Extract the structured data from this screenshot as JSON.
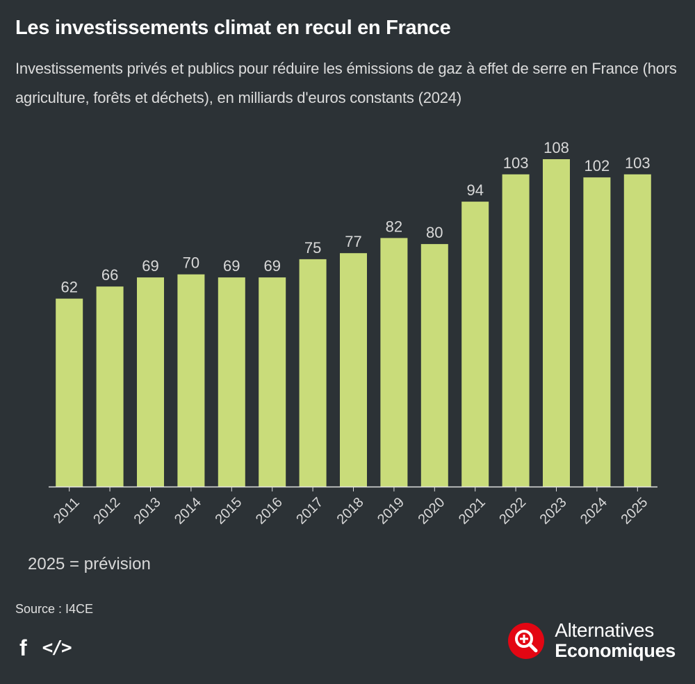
{
  "header": {
    "title": "Les investissements climat en recul en France",
    "subtitle": "Investissements privés et publics pour réduire les émissions de gaz à effet de serre en France (hors agriculture, forêts et déchets), en milliards d'euros constants (2024)"
  },
  "chart_data": {
    "type": "bar",
    "title": "Les investissements climat en recul en France",
    "subtitle": "Investissements privés et publics pour réduire les émissions de gaz à effet de serre en France (hors agriculture, forêts et déchets), en milliards d'euros constants (2024)",
    "categories": [
      "2011",
      "2012",
      "2013",
      "2014",
      "2015",
      "2016",
      "2017",
      "2018",
      "2019",
      "2020",
      "2021",
      "2022",
      "2023",
      "2024",
      "2025"
    ],
    "values": [
      62,
      66,
      69,
      70,
      69,
      69,
      75,
      77,
      82,
      80,
      94,
      103,
      108,
      102,
      103
    ],
    "labels": [
      "62",
      "66",
      "69",
      "70",
      "69",
      "69",
      "75",
      "77",
      "82",
      "80",
      "94",
      "103",
      "108",
      "102",
      "103"
    ],
    "xlabel": "",
    "ylabel": "",
    "ylim": [
      0,
      108
    ],
    "grid": false,
    "legend": "none",
    "bar_color": "#c9dc7a"
  },
  "colors": {
    "background": "#2c3236",
    "bar": "#c9dc7a",
    "axis": "#e0e0e0",
    "label": "#d9d9d9",
    "brand_red": "#e30613"
  },
  "footer": {
    "note": "2025 = prévision",
    "source": "Source : I4CE",
    "share": {
      "facebook_icon": "f",
      "embed_icon": "</>"
    },
    "brand": {
      "line1": "Alternatives",
      "line2": "Economiques",
      "logo_icon": "magnifier-plus-icon"
    }
  }
}
